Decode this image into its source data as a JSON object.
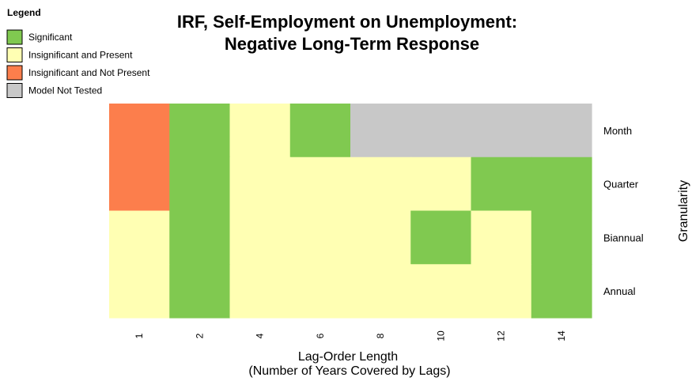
{
  "chart_data": {
    "type": "heatmap",
    "title_lines": [
      "IRF, Self-Employment on Unemployment:",
      "Negative Long-Term Response"
    ],
    "xlabel_lines": [
      "Lag-Order Length",
      "(Number of Years Covered by Lags)"
    ],
    "ylabel": "Granularity",
    "x_tick_labels": [
      "1",
      "2",
      "4",
      "6",
      "8",
      "10",
      "12",
      "14"
    ],
    "rows": [
      "Month",
      "Quarter",
      "Biannual",
      "Annual"
    ],
    "legend": {
      "title": "Legend",
      "position": "top-left",
      "items": [
        {
          "key": "S",
          "label": "Significant",
          "color": "#80C950"
        },
        {
          "key": "I",
          "label": "Insignificant and Present",
          "color": "#FFFFB3"
        },
        {
          "key": "N",
          "label": "Insignificant and Not Present",
          "color": "#FC7E4C"
        },
        {
          "key": "X",
          "label": "Model Not Tested",
          "color": "#C8C8C8"
        }
      ]
    },
    "cells": [
      [
        "N",
        "S",
        "I",
        "S",
        "X",
        "X",
        "X",
        "X"
      ],
      [
        "N",
        "S",
        "I",
        "I",
        "I",
        "I",
        "S",
        "S"
      ],
      [
        "I",
        "S",
        "I",
        "I",
        "I",
        "S",
        "I",
        "S"
      ],
      [
        "I",
        "S",
        "I",
        "I",
        "I",
        "I",
        "I",
        "S"
      ]
    ],
    "columns": 8
  }
}
